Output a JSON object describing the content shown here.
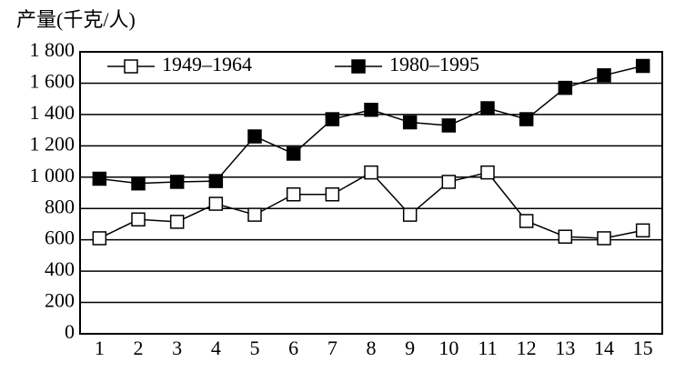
{
  "chart_data": {
    "type": "line",
    "title": "产量(千克/人)",
    "categories": [
      "1",
      "2",
      "3",
      "4",
      "5",
      "6",
      "7",
      "8",
      "9",
      "10",
      "11",
      "12",
      "13",
      "14",
      "15"
    ],
    "series": [
      {
        "name": "1949–1964",
        "color": "#000000",
        "marker": "open-square",
        "values": [
          610,
          730,
          715,
          830,
          760,
          890,
          890,
          1030,
          760,
          970,
          1030,
          720,
          620,
          610,
          660
        ]
      },
      {
        "name": "1980–1995",
        "color": "#000000",
        "marker": "filled-square",
        "values": [
          990,
          960,
          970,
          975,
          1260,
          1150,
          1370,
          1430,
          1350,
          1330,
          1440,
          1370,
          1570,
          1650,
          1710
        ]
      }
    ],
    "ylim": [
      0,
      1800
    ],
    "yticks": [
      0,
      200,
      400,
      600,
      800,
      {
        "value": 1000,
        "label": "1 000"
      },
      {
        "value": 1200,
        "label": "1 200"
      },
      {
        "value": 1400,
        "label": "1 400"
      },
      {
        "value": 1600,
        "label": "1 600"
      },
      {
        "value": 1800,
        "label": "1 800"
      }
    ],
    "grid": true,
    "legend": "upper left"
  }
}
